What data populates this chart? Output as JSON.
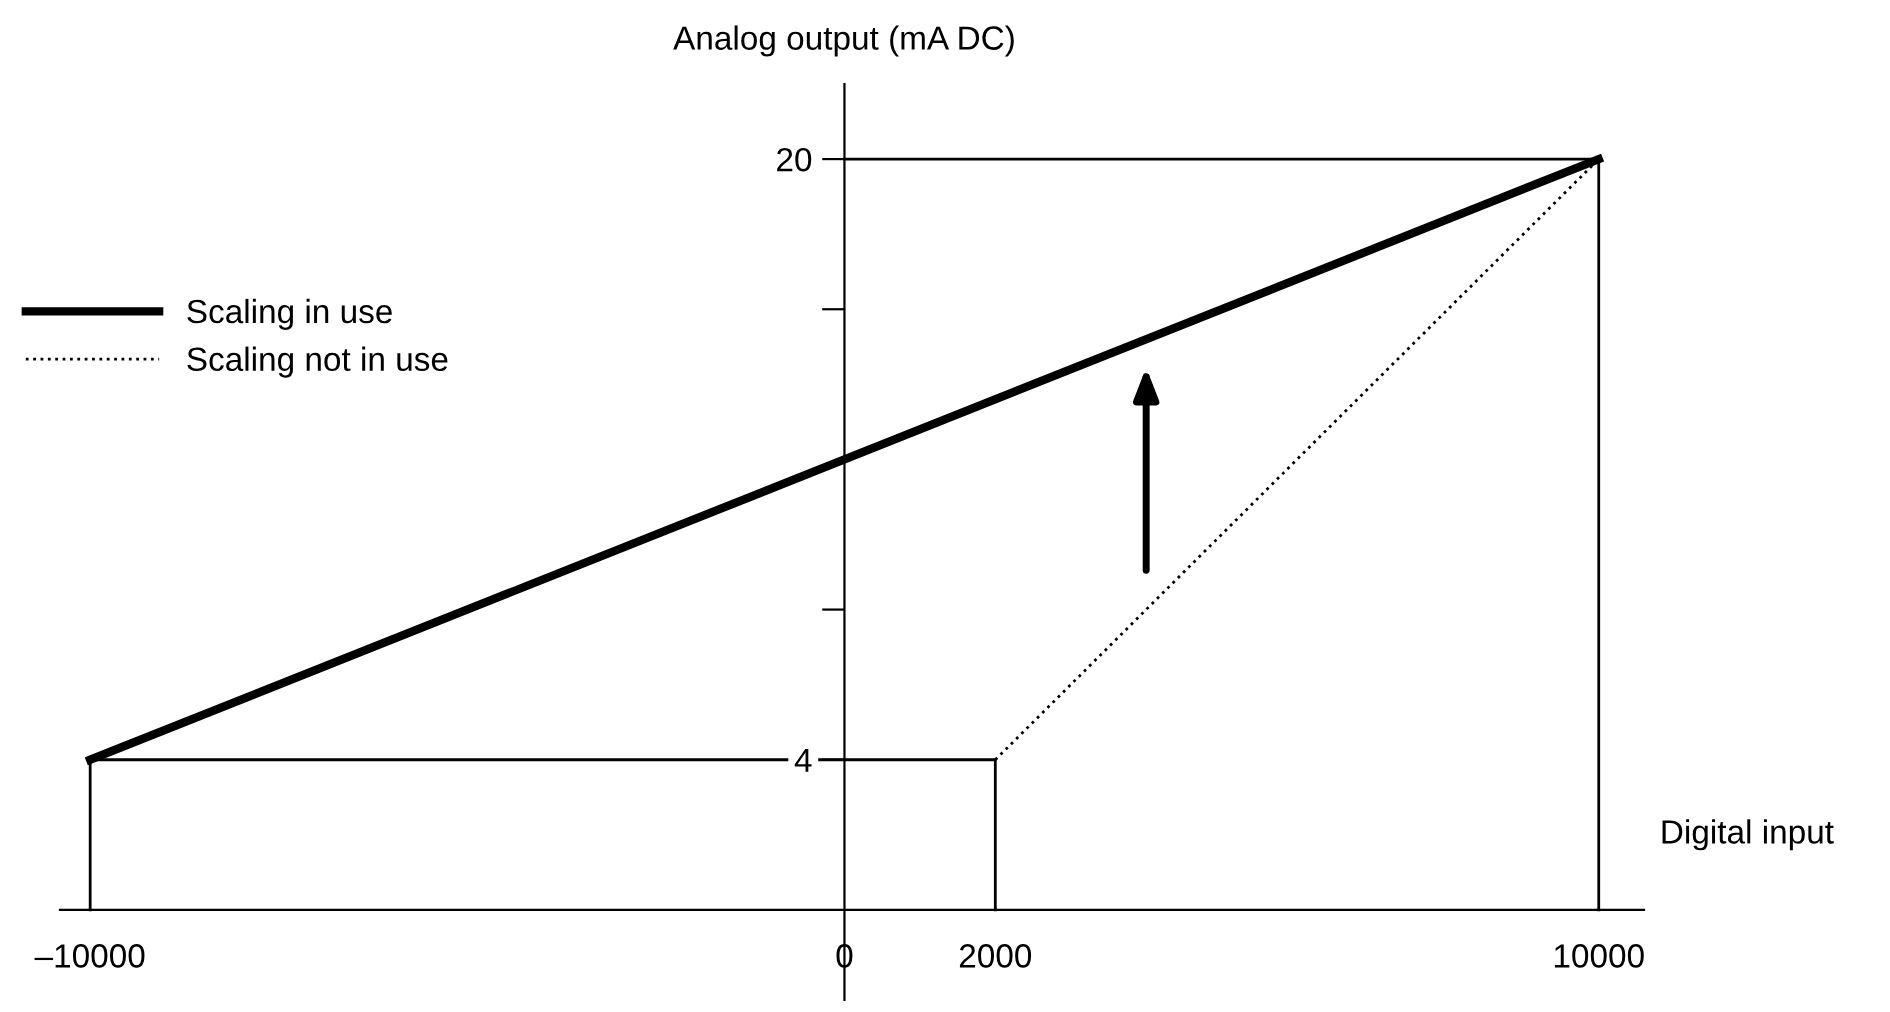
{
  "chart_data": {
    "type": "line",
    "xlabel": "Digital input",
    "ylabel": "Analog output (mA DC)",
    "xlim": [
      -10400,
      10600
    ],
    "ylim": [
      -2.4,
      22
    ],
    "xticks": [
      {
        "value": -10000,
        "label": "–10000"
      },
      0,
      2000,
      10000
    ],
    "yticks": [
      {
        "value": 4,
        "label": "4"
      },
      {
        "value": 8,
        "label": null
      },
      {
        "value": 16,
        "label": null
      },
      20
    ],
    "grid": false,
    "legend": "top left",
    "marker": "none",
    "series": [
      {
        "name": "Scaling in use",
        "color": "#000000",
        "line_style": "solid",
        "x": [
          -10000,
          10000
        ],
        "values": [
          4,
          20
        ]
      },
      {
        "name": "Scaling not in use",
        "color": "#000000",
        "line_style": "dotted",
        "x": [
          2000,
          10000
        ],
        "values": [
          4,
          20
        ]
      },
      {
        "color": "#000000",
        "line_style": "solid",
        "x": [
          -10000,
          -10000,
          2000,
          2000
        ],
        "values": [
          0,
          4,
          4,
          0
        ]
      },
      {
        "color": "#000000",
        "line_style": "solid",
        "x": [
          0,
          10000,
          10000
        ],
        "values": [
          20,
          20,
          0
        ]
      }
    ]
  }
}
